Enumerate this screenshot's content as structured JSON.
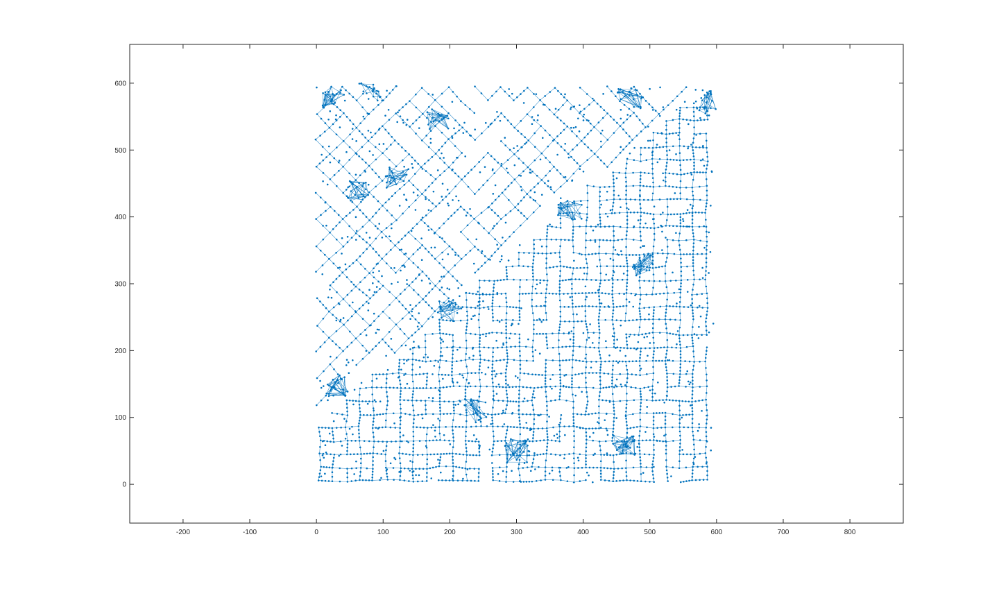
{
  "figure": {
    "background": "#ffffff",
    "axes_color": "#262626"
  },
  "chart_data": {
    "type": "scatter",
    "title": "",
    "xlabel": "",
    "ylabel": "",
    "xlim": [
      -280,
      880
    ],
    "ylim": [
      -58,
      658
    ],
    "xticks": [
      -200,
      -100,
      0,
      100,
      200,
      300,
      400,
      500,
      600,
      700,
      800
    ],
    "yticks": [
      0,
      100,
      200,
      300,
      400,
      500,
      600
    ],
    "xtick_labels": [
      "-200",
      "-100",
      "0",
      "100",
      "200",
      "300",
      "400",
      "500",
      "600",
      "700",
      "800"
    ],
    "ytick_labels": [
      "0",
      "100",
      "200",
      "300",
      "400",
      "500",
      "600"
    ],
    "grid": false,
    "box": true,
    "series": [
      {
        "color": "#0072bd",
        "marker": "dot",
        "connected_as_graph": true,
        "region": {
          "x": [
            0,
            600
          ],
          "y": [
            0,
            600
          ]
        },
        "diagonal_boundary": {
          "from": [
            100,
            180
          ],
          "to": [
            580,
            600
          ]
        },
        "upper_left_region": {
          "pattern": "rotated 45° grid",
          "spacing": 28
        },
        "lower_right_region": {
          "pattern": "axis-aligned grid",
          "spacing": 20
        },
        "dense_clusters": [
          {
            "x": 25,
            "y": 580
          },
          {
            "x": 80,
            "y": 590
          },
          {
            "x": 180,
            "y": 545
          },
          {
            "x": 60,
            "y": 440
          },
          {
            "x": 120,
            "y": 460
          },
          {
            "x": 200,
            "y": 260
          },
          {
            "x": 240,
            "y": 110
          },
          {
            "x": 300,
            "y": 50
          },
          {
            "x": 460,
            "y": 60
          },
          {
            "x": 380,
            "y": 410
          },
          {
            "x": 490,
            "y": 330
          },
          {
            "x": 590,
            "y": 570
          },
          {
            "x": 470,
            "y": 580
          },
          {
            "x": 30,
            "y": 150
          }
        ]
      }
    ]
  }
}
